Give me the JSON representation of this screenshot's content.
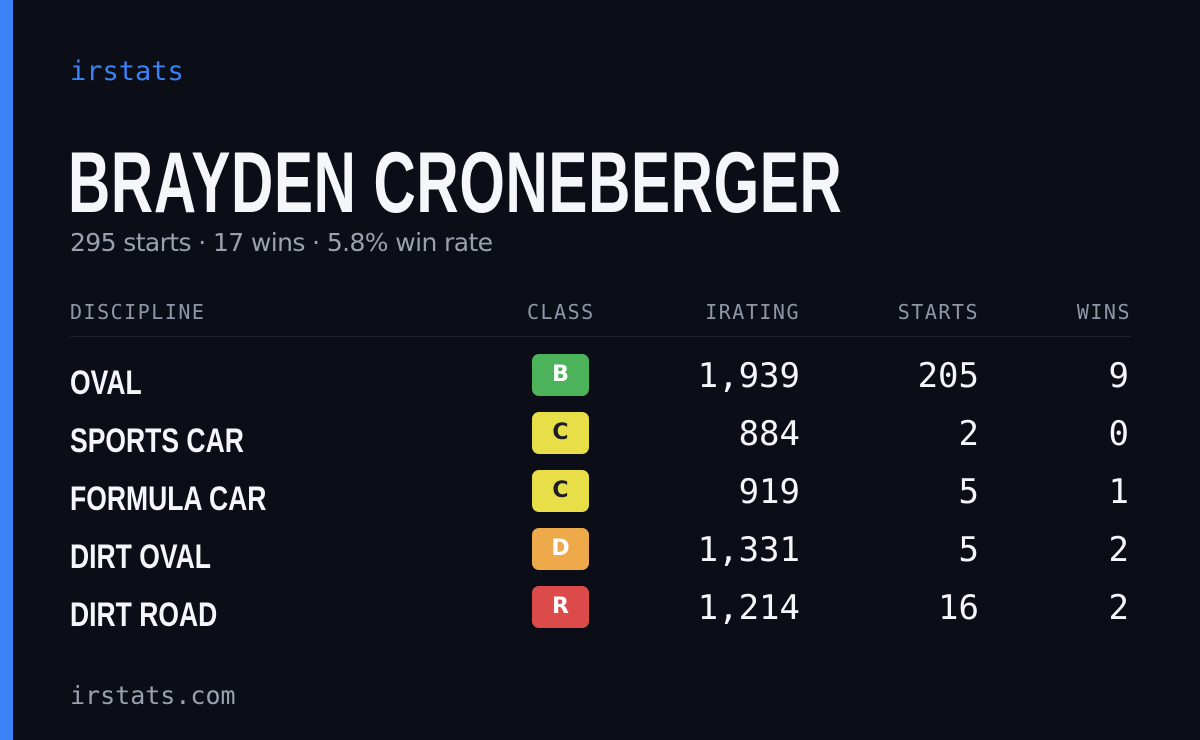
{
  "brand": "irstats",
  "driver": {
    "name": "BRAYDEN CRONEBERGER",
    "summary": "295 starts · 17 wins · 5.8% win rate"
  },
  "table": {
    "headers": {
      "discipline": "DISCIPLINE",
      "class": "CLASS",
      "irating": "IRATING",
      "starts": "STARTS",
      "wins": "WINS"
    },
    "rows": [
      {
        "discipline": "OVAL",
        "class": "B",
        "class_color": "#4cb35a",
        "class_text_color": "#ffffff",
        "irating": "1,939",
        "starts": "205",
        "wins": "9"
      },
      {
        "discipline": "SPORTS CAR",
        "class": "C",
        "class_color": "#e8df48",
        "class_text_color": "#1b1e26",
        "irating": "884",
        "starts": "2",
        "wins": "0"
      },
      {
        "discipline": "FORMULA CAR",
        "class": "C",
        "class_color": "#e8df48",
        "class_text_color": "#1b1e26",
        "irating": "919",
        "starts": "5",
        "wins": "1"
      },
      {
        "discipline": "DIRT OVAL",
        "class": "D",
        "class_color": "#eda94a",
        "class_text_color": "#ffffff",
        "irating": "1,331",
        "starts": "5",
        "wins": "2"
      },
      {
        "discipline": "DIRT ROAD",
        "class": "R",
        "class_color": "#dc4a4a",
        "class_text_color": "#ffffff",
        "irating": "1,214",
        "starts": "16",
        "wins": "2"
      }
    ]
  },
  "footer": "irstats.com",
  "colors": {
    "accent": "#3b82f6",
    "background": "#0b0e16"
  }
}
